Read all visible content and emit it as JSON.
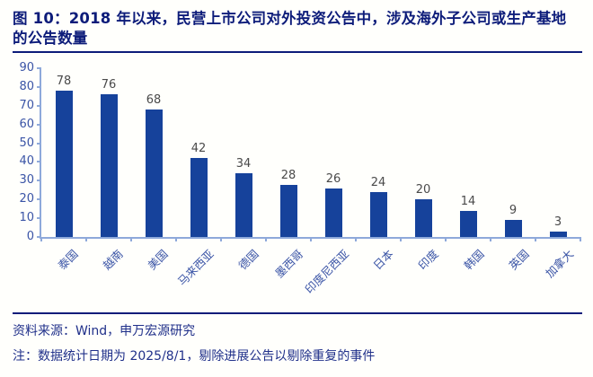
{
  "figure": {
    "label": "图 10",
    "title": "图 10：2018 年以来，民营上市公司对外投资公告中，涉及海外子公司或生产基地的公告数量",
    "source": "资料来源：Wind，申万宏源研究",
    "note": "注：数据统计日期为 2025/8/1，剔除进展公告以剔除重复的事件"
  },
  "chart_data": {
    "type": "bar",
    "title": "2018 年以来，民营上市公司对外投资公告中，涉及海外子公司或生产基地的公告数量",
    "categories": [
      "泰国",
      "越南",
      "美国",
      "马来西亚",
      "德国",
      "墨西哥",
      "印度尼西亚",
      "日本",
      "印度",
      "韩国",
      "英国",
      "加拿大"
    ],
    "values": [
      78,
      76,
      68,
      42,
      34,
      28,
      26,
      24,
      20,
      14,
      9,
      3
    ],
    "xlabel": "",
    "ylabel": "",
    "ylim": [
      0,
      90
    ],
    "ytick_step": 10,
    "yticks": [
      0,
      10,
      20,
      30,
      40,
      50,
      60,
      70,
      80,
      90
    ],
    "grid": false,
    "legend": "none",
    "data_labels": true,
    "bar_color": "#16429b"
  },
  "colors": {
    "title_navy": "#0d1c7a",
    "footer_navy": "#20308a",
    "bar_blue": "#16429b",
    "axis_light_blue": "#8ea9da",
    "tick_label_blue": "#3a54a6",
    "value_label_gray": "#4a4a4a",
    "background": "#fffffc"
  }
}
